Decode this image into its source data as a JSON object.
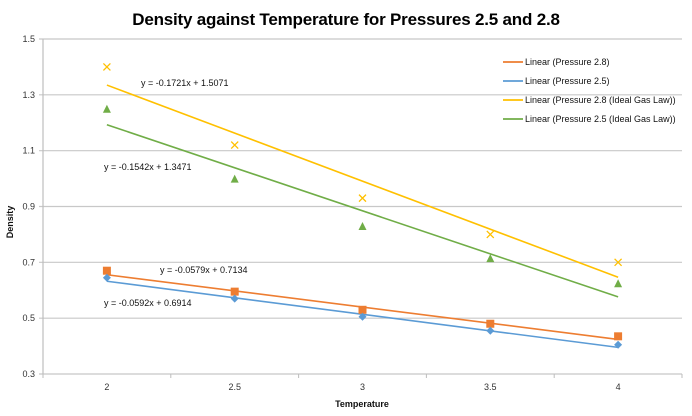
{
  "chart_data": {
    "type": "scatter",
    "title": "Density against Temperature for Pressures 2.5 and 2.8",
    "xlabel": "Temperature",
    "ylabel": "Density",
    "categories": [
      "2",
      "2.5",
      "3",
      "3.5",
      "4"
    ],
    "ylim": [
      0.3,
      1.5
    ],
    "yticks": [
      "0.3",
      "0.5",
      "0.7",
      "0.9",
      "1.1",
      "1.3",
      "1.5"
    ],
    "grid": "horizontal",
    "legend_position": "top-right",
    "series": [
      {
        "name": "Pressure 2.8",
        "marker": "square",
        "color": "#ED7D31",
        "values": [
          0.67,
          0.595,
          0.53,
          0.48,
          0.435
        ]
      },
      {
        "name": "Pressure 2.5",
        "marker": "diamond",
        "color": "#5B9BD5",
        "values": [
          0.645,
          0.57,
          0.505,
          0.455,
          0.405
        ]
      },
      {
        "name": "Pressure 2.8 (Ideal Gas Law)",
        "marker": "x",
        "color": "#FFC000",
        "values": [
          1.4,
          1.12,
          0.93,
          0.8,
          0.7
        ]
      },
      {
        "name": "Pressure 2.5 (Ideal Gas Law)",
        "marker": "triangle",
        "color": "#70AD47",
        "values": [
          1.25,
          1.0,
          0.83,
          0.715,
          0.625
        ]
      }
    ],
    "trendlines": [
      {
        "legend": "Linear (Pressure 2.8)",
        "color": "#ED7D31",
        "slope": -0.0579,
        "intercept": 0.7134,
        "equation": "y = -0.0579x + 0.7134"
      },
      {
        "legend": "Linear (Pressure 2.5)",
        "color": "#5B9BD5",
        "slope": -0.0592,
        "intercept": 0.6914,
        "equation": "y = -0.0592x + 0.6914"
      },
      {
        "legend": "Linear (Pressure 2.8 (Ideal Gas Law))",
        "color": "#FFC000",
        "slope": -0.1721,
        "intercept": 1.5071,
        "equation": "y = -0.1721x + 1.5071"
      },
      {
        "legend": "Linear (Pressure 2.5 (Ideal Gas Law))",
        "color": "#70AD47",
        "slope": -0.1542,
        "intercept": 1.3471,
        "equation": "y = -0.1542x + 1.3471"
      }
    ]
  }
}
